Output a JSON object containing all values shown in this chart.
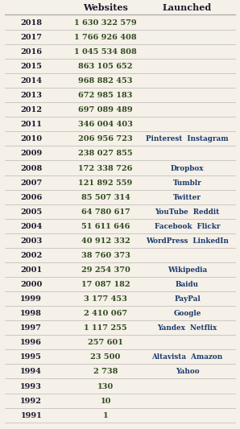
{
  "title_col1": "Websites",
  "title_col2": "Launched",
  "rows": [
    {
      "year": "2018",
      "websites": "1 630 322 579",
      "launched": ""
    },
    {
      "year": "2017",
      "websites": "1 766 926 408",
      "launched": ""
    },
    {
      "year": "2016",
      "websites": "1 045 534 808",
      "launched": ""
    },
    {
      "year": "2015",
      "websites": "863 105 652",
      "launched": ""
    },
    {
      "year": "2014",
      "websites": "968 882 453",
      "launched": ""
    },
    {
      "year": "2013",
      "websites": "672 985 183",
      "launched": ""
    },
    {
      "year": "2012",
      "websites": "697 089 489",
      "launched": ""
    },
    {
      "year": "2011",
      "websites": "346 004 403",
      "launched": ""
    },
    {
      "year": "2010",
      "websites": "206 956 723",
      "launched": "Pinterest  Instagram"
    },
    {
      "year": "2009",
      "websites": "238 027 855",
      "launched": ""
    },
    {
      "year": "2008",
      "websites": "172 338 726",
      "launched": "Dropbox"
    },
    {
      "year": "2007",
      "websites": "121 892 559",
      "launched": "Tumblr"
    },
    {
      "year": "2006",
      "websites": "85 507 314",
      "launched": "Twitter"
    },
    {
      "year": "2005",
      "websites": "64 780 617",
      "launched": "YouTube  Reddit"
    },
    {
      "year": "2004",
      "websites": "51 611 646",
      "launched": "Facebook  Flickr"
    },
    {
      "year": "2003",
      "websites": "40 912 332",
      "launched": "WordPress  LinkedIn"
    },
    {
      "year": "2002",
      "websites": "38 760 373",
      "launched": ""
    },
    {
      "year": "2001",
      "websites": "29 254 370",
      "launched": "Wikipedia"
    },
    {
      "year": "2000",
      "websites": "17 087 182",
      "launched": "Baidu"
    },
    {
      "year": "1999",
      "websites": "3 177 453",
      "launched": "PayPal"
    },
    {
      "year": "1998",
      "websites": "2 410 067",
      "launched": "Google"
    },
    {
      "year": "1997",
      "websites": "1 117 255",
      "launched": "Yandex  Netflix"
    },
    {
      "year": "1996",
      "websites": "257 601",
      "launched": ""
    },
    {
      "year": "1995",
      "websites": "23 500",
      "launched": "Altavista  Amazon"
    },
    {
      "year": "1994",
      "websites": "2 738",
      "launched": "Yahoo"
    },
    {
      "year": "1993",
      "websites": "130",
      "launched": ""
    },
    {
      "year": "1992",
      "websites": "10",
      "launched": ""
    },
    {
      "year": "1991",
      "websites": "1",
      "launched": ""
    }
  ],
  "year_color": "#1a1a2e",
  "websites_color": "#2e4a1e",
  "launched_color": "#1a3a6b",
  "header_color": "#1a1a2e",
  "bg_color": "#f5f0e8",
  "line_color": "#aaaaaa"
}
